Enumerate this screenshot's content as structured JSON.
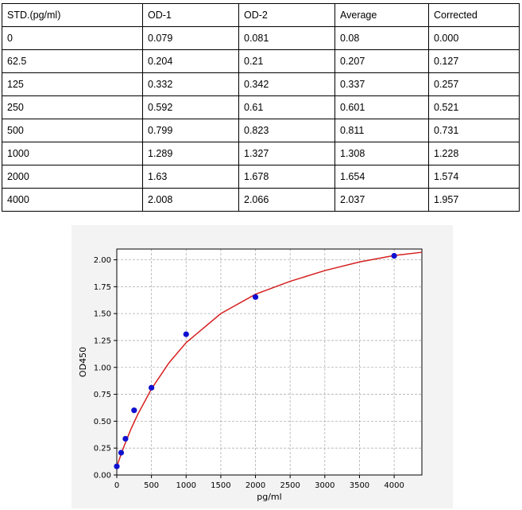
{
  "table": {
    "headers": [
      "STD.(pg/ml)",
      "OD-1",
      "OD-2",
      "Average",
      "Corrected"
    ],
    "rows": [
      [
        "0",
        "0.079",
        "0.081",
        "0.08",
        "0.000"
      ],
      [
        "62.5",
        "0.204",
        "0.21",
        "0.207",
        "0.127"
      ],
      [
        "125",
        "0.332",
        "0.342",
        "0.337",
        "0.257"
      ],
      [
        "250",
        "0.592",
        "0.61",
        "0.601",
        "0.521"
      ],
      [
        "500",
        "0.799",
        "0.823",
        "0.811",
        "0.731"
      ],
      [
        "1000",
        "1.289",
        "1.327",
        "1.308",
        "1.228"
      ],
      [
        "2000",
        "1.63",
        "1.678",
        "1.654",
        "1.574"
      ],
      [
        "4000",
        "2.008",
        "2.066",
        "2.037",
        "1.957"
      ]
    ]
  },
  "chart_data": {
    "type": "scatter",
    "title": "",
    "xlabel": "pg/ml",
    "ylabel": "OD450",
    "xlim": [
      0,
      4400
    ],
    "ylim": [
      0,
      2.1
    ],
    "xticks": [
      0,
      500,
      1000,
      1500,
      2000,
      2500,
      3000,
      3500,
      4000
    ],
    "yticks": [
      0.0,
      0.25,
      0.5,
      0.75,
      1.0,
      1.25,
      1.5,
      1.75,
      2.0
    ],
    "xtick_labels": [
      "0",
      "500",
      "1000",
      "1500",
      "2000",
      "2500",
      "3000",
      "3500",
      "4000"
    ],
    "ytick_labels": [
      "0.00",
      "0.25",
      "0.50",
      "0.75",
      "1.00",
      "1.25",
      "1.50",
      "1.75",
      "2.00"
    ],
    "grid": true,
    "points": {
      "x": [
        0,
        62.5,
        125,
        250,
        500,
        1000,
        2000,
        4000
      ],
      "y": [
        0.08,
        0.207,
        0.337,
        0.601,
        0.811,
        1.308,
        1.654,
        2.037
      ]
    },
    "fit_curve": {
      "x": [
        0,
        50,
        100,
        200,
        300,
        500,
        750,
        1000,
        1500,
        2000,
        2500,
        3000,
        3500,
        4000,
        4400
      ],
      "y": [
        0.08,
        0.17,
        0.26,
        0.42,
        0.56,
        0.8,
        1.04,
        1.23,
        1.5,
        1.68,
        1.8,
        1.9,
        1.98,
        2.04,
        2.07
      ]
    },
    "colors": {
      "points": "#1010d0",
      "curve": "#d62020",
      "grid": "#b0b0b0"
    }
  }
}
